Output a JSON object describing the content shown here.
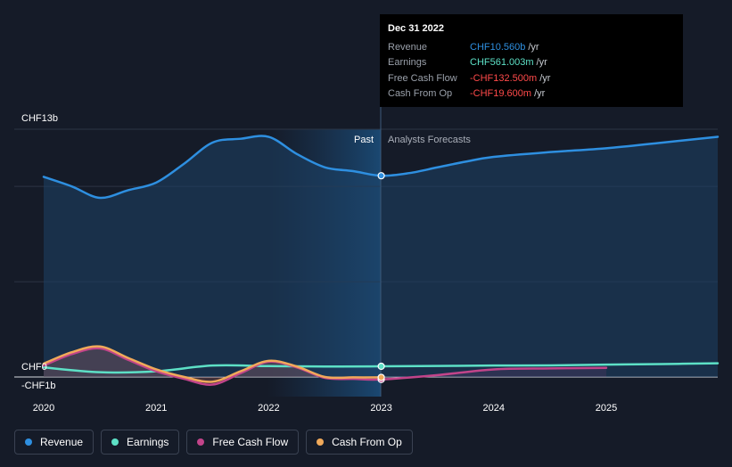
{
  "chart_data": {
    "type": "line",
    "currency_unit": "CHF",
    "y_axis_labels": [
      "CHF13b",
      "CHF0",
      "-CHF1b"
    ],
    "ylim": [
      -1,
      13
    ],
    "xlim": [
      2019.75,
      2025.95
    ],
    "x_ticks": [
      {
        "value": 2020,
        "label": "2020"
      },
      {
        "value": 2021,
        "label": "2021"
      },
      {
        "value": 2022,
        "label": "2022"
      },
      {
        "value": 2023,
        "label": "2023"
      },
      {
        "value": 2024,
        "label": "2024"
      },
      {
        "value": 2025,
        "label": "2025"
      }
    ],
    "regions": {
      "past_label": "Past",
      "forecast_label": "Analysts Forecasts",
      "divider_x": 2023
    },
    "series": [
      {
        "name": "Revenue",
        "color": "#2e8fe0",
        "area": true,
        "x": [
          2020,
          2020.25,
          2020.5,
          2020.75,
          2021,
          2021.25,
          2021.5,
          2021.75,
          2022,
          2022.25,
          2022.5,
          2022.75,
          2023,
          2023.25,
          2023.5,
          2023.75,
          2024,
          2024.5,
          2025,
          2025.5,
          2026
        ],
        "values": [
          10.5,
          10.0,
          9.4,
          9.8,
          10.2,
          11.2,
          12.3,
          12.5,
          12.6,
          11.7,
          11.0,
          10.8,
          10.56,
          10.7,
          11.0,
          11.3,
          11.55,
          11.8,
          12.0,
          12.3,
          12.6
        ]
      },
      {
        "name": "Earnings",
        "color": "#5de0c6",
        "x": [
          2020,
          2020.5,
          2021,
          2021.5,
          2022,
          2022.5,
          2023,
          2023.5,
          2024,
          2024.5,
          2025,
          2025.5,
          2026
        ],
        "values": [
          0.5,
          0.25,
          0.3,
          0.6,
          0.57,
          0.55,
          0.56,
          0.58,
          0.6,
          0.61,
          0.65,
          0.68,
          0.72
        ]
      },
      {
        "name": "Free Cash Flow",
        "color": "#c2448a",
        "x": [
          2020,
          2020.25,
          2020.5,
          2020.75,
          2021,
          2021.25,
          2021.5,
          2021.75,
          2022,
          2022.25,
          2022.5,
          2022.75,
          2023,
          2023.5,
          2024,
          2024.5,
          2025
        ],
        "values": [
          0.6,
          1.2,
          1.5,
          0.9,
          0.3,
          -0.1,
          -0.4,
          0.2,
          0.8,
          0.5,
          -0.05,
          -0.1,
          -0.13,
          0.1,
          0.4,
          0.45,
          0.48
        ]
      },
      {
        "name": "Cash From Op",
        "color": "#f0a95a",
        "x": [
          2020,
          2020.25,
          2020.5,
          2020.75,
          2021,
          2021.25,
          2021.5,
          2021.75,
          2022,
          2022.25,
          2022.5,
          2022.75,
          2023
        ],
        "values": [
          0.7,
          1.3,
          1.6,
          1.0,
          0.4,
          0.0,
          -0.25,
          0.3,
          0.85,
          0.55,
          0.0,
          -0.02,
          -0.02
        ]
      }
    ],
    "tooltip": {
      "date": "Dec 31 2022",
      "unit_suffix": "/yr",
      "rows": [
        {
          "label": "Revenue",
          "value": "CHF10.560b",
          "color": "#2e8fe0"
        },
        {
          "label": "Earnings",
          "value": "CHF561.003m",
          "color": "#5de0c6"
        },
        {
          "label": "Free Cash Flow",
          "value": "-CHF132.500m",
          "color": "#ff4a4a"
        },
        {
          "label": "Cash From Op",
          "value": "-CHF19.600m",
          "color": "#ff4a4a"
        }
      ]
    }
  },
  "legend": [
    {
      "label": "Revenue",
      "color": "#2e8fe0"
    },
    {
      "label": "Earnings",
      "color": "#5de0c6"
    },
    {
      "label": "Free Cash Flow",
      "color": "#c2448a"
    },
    {
      "label": "Cash From Op",
      "color": "#f0a95a"
    }
  ]
}
